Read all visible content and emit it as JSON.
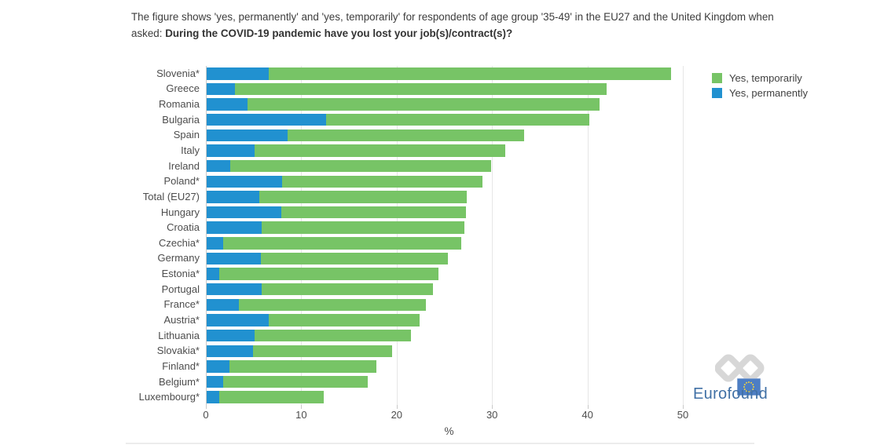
{
  "header": {
    "line1": "The figure shows 'yes, permanently' and 'yes, temporarily' for respondents of age group '35-49' in the EU27 and the United Kingdom when",
    "line2_prefix": "asked:",
    "question": "During the COVID-19 pandemic have you lost your job(s)/contract(s)?"
  },
  "legend": [
    {
      "label": "Yes, temporarily",
      "color": "#77c466"
    },
    {
      "label": "Yes, permanently",
      "color": "#2191d0"
    }
  ],
  "chart_data": {
    "type": "bar",
    "orientation": "horizontal",
    "stacked": true,
    "title": "",
    "xlabel": "%",
    "ylabel": "",
    "xlim": [
      0,
      50
    ],
    "xticks": [
      0,
      10,
      20,
      30,
      40,
      50
    ],
    "grid": true,
    "legend_position": "top-right",
    "categories": [
      "Slovenia*",
      "Greece",
      "Romania",
      "Bulgaria",
      "Spain",
      "Italy",
      "Ireland",
      "Poland*",
      "Total (EU27)",
      "Hungary",
      "Croatia",
      "Czechia*",
      "Germany",
      "Estonia*",
      "Portugal",
      "France*",
      "Austria*",
      "Lithuania",
      "Slovakia*",
      "Finland*",
      "Belgium*",
      "Luxembourg*"
    ],
    "series": [
      {
        "name": "Yes, permanently",
        "color": "#2191d0",
        "values": [
          6.5,
          3.0,
          4.3,
          12.5,
          8.5,
          5.0,
          2.5,
          7.9,
          5.5,
          7.8,
          5.8,
          1.7,
          5.7,
          1.3,
          5.8,
          3.4,
          6.5,
          5.0,
          4.9,
          2.4,
          1.7,
          1.3
        ]
      },
      {
        "name": "Yes, temporarily",
        "color": "#77c466",
        "values": [
          42.2,
          38.9,
          36.9,
          27.6,
          24.8,
          26.3,
          27.3,
          21.0,
          21.8,
          19.4,
          21.2,
          25.0,
          19.6,
          23.0,
          17.9,
          19.6,
          15.8,
          16.4,
          14.5,
          15.4,
          15.2,
          11.0
        ]
      }
    ]
  },
  "branding": {
    "logo_text": "Eurofound"
  }
}
